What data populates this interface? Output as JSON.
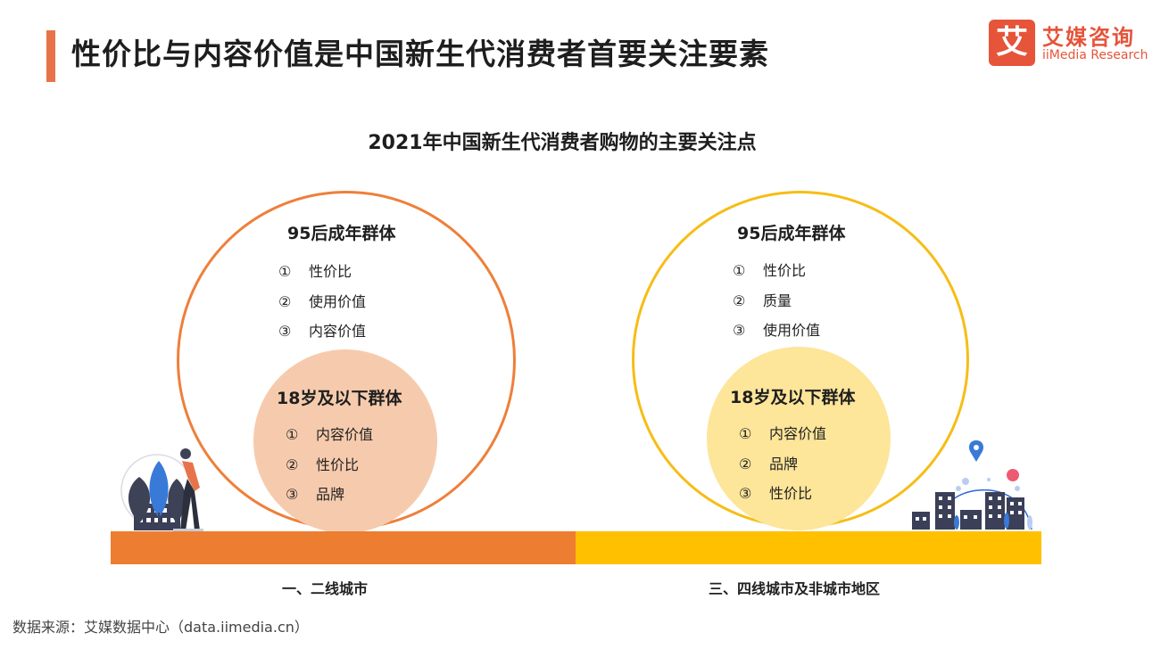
{
  "header": {
    "title": "性价比与内容价值是中国新生代消费者首要关注要素"
  },
  "logo": {
    "glyph": "艾",
    "cn": "艾媒咨询",
    "en": "iiMedia Research"
  },
  "chart_title": "2021年中国新生代消费者购物的主要关注点",
  "left_panel": {
    "region_label": "一、二线城市",
    "outer_group": {
      "title": "95后成年群体",
      "items": [
        {
          "num": "①",
          "text": "性价比"
        },
        {
          "num": "②",
          "text": "使用价值"
        },
        {
          "num": "③",
          "text": "内容价值"
        }
      ]
    },
    "inner_group": {
      "title": "18岁及以下群体",
      "items": [
        {
          "num": "①",
          "text": "内容价值"
        },
        {
          "num": "②",
          "text": "性价比"
        },
        {
          "num": "③",
          "text": "品牌"
        }
      ]
    }
  },
  "right_panel": {
    "region_label": "三、四线城市及非城市地区",
    "outer_group": {
      "title": "95后成年群体",
      "items": [
        {
          "num": "①",
          "text": "性价比"
        },
        {
          "num": "②",
          "text": "质量"
        },
        {
          "num": "③",
          "text": "使用价值"
        }
      ]
    },
    "inner_group": {
      "title": "18岁及以下群体",
      "items": [
        {
          "num": "①",
          "text": "内容价值"
        },
        {
          "num": "②",
          "text": "品牌"
        },
        {
          "num": "③",
          "text": "性价比"
        }
      ]
    }
  },
  "source": "数据来源：艾媒数据中心（data.iimedia.cn）",
  "colors": {
    "accent": "#e8734a",
    "left_ring": "#ee7f3a",
    "right_ring": "#f6bd16",
    "left_fill": "#f6cbad",
    "right_fill": "#fde59a",
    "left_ground": "#ed7d31",
    "right_ground": "#ffc000"
  }
}
